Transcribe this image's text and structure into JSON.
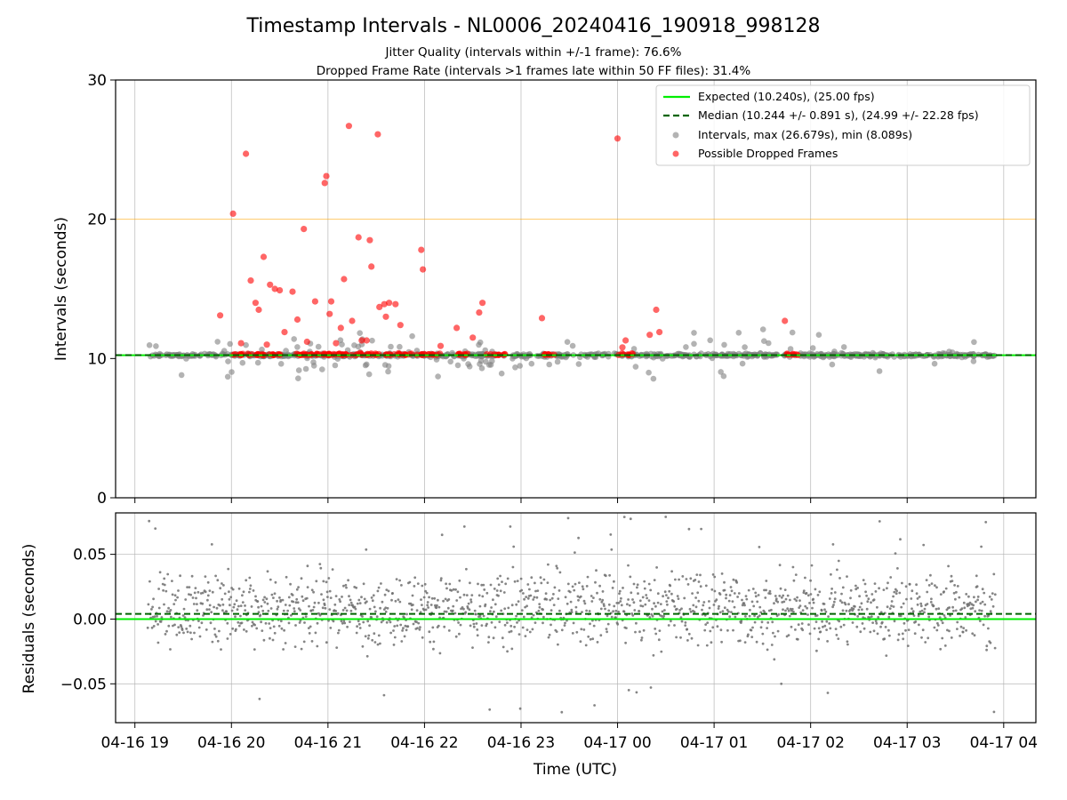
{
  "chart_data": [
    {
      "type": "scatter",
      "title": "Timestamp Intervals - NL0006_20240416_190918_998128",
      "subtitle_lines": [
        "Jitter Quality (intervals within +/-1 frame): 76.6%",
        "Dropped Frame Rate (intervals >1 frames late within 50 FF files): 31.4%"
      ],
      "ylabel": "Intervals (seconds)",
      "ylim": [
        0,
        30
      ],
      "yticks": [
        "0",
        "10",
        "20",
        "30"
      ],
      "grid": "x",
      "legend_placement": "upper right",
      "reference_lines": {
        "expected": 10.24,
        "median": 10.244,
        "threshold": 20
      },
      "colors": {
        "expected": "#00ee00",
        "median": "#006400",
        "intervals": "#808080",
        "dropped": "#ff0000",
        "threshold": "#ffa500"
      },
      "legend": [
        "Expected (10.240s), (25.00 fps)",
        "Median (10.244 +/- 0.891 s), (24.99 +/- 22.28 fps)",
        "Intervals, max (26.679s), min (8.089s)",
        "Possible Dropped Frames"
      ],
      "dropped_frames": {
        "x": [
          "2024-04-16 19:53",
          "2024-04-16 20:01",
          "2024-04-16 20:09",
          "2024-04-16 20:12",
          "2024-04-16 20:15",
          "2024-04-16 20:17",
          "2024-04-16 20:20",
          "2024-04-16 20:24",
          "2024-04-16 20:27",
          "2024-04-16 20:30",
          "2024-04-16 20:33",
          "2024-04-16 20:38",
          "2024-04-16 20:41",
          "2024-04-16 20:45",
          "2024-04-16 20:52",
          "2024-04-16 20:58",
          "2024-04-16 20:59",
          "2024-04-16 21:01",
          "2024-04-16 21:02",
          "2024-04-16 21:08",
          "2024-04-16 21:10",
          "2024-04-16 21:13",
          "2024-04-16 21:15",
          "2024-04-16 21:19",
          "2024-04-16 21:21",
          "2024-04-16 21:26",
          "2024-04-16 21:27",
          "2024-04-16 21:31",
          "2024-04-16 21:32",
          "2024-04-16 21:35",
          "2024-04-16 21:36",
          "2024-04-16 21:38",
          "2024-04-16 21:42",
          "2024-04-16 21:58",
          "2024-04-16 21:59",
          "2024-04-16 22:20",
          "2024-04-16 22:34",
          "2024-04-16 22:36",
          "2024-04-16 23:13",
          "2024-04-17 00:00",
          "2024-04-17 00:05",
          "2024-04-17 00:20",
          "2024-04-17 00:24",
          "2024-04-17 01:44",
          "2024-04-16 20:06",
          "2024-04-16 20:22",
          "2024-04-16 20:47",
          "2024-04-16 21:05",
          "2024-04-16 21:24",
          "2024-04-16 21:45",
          "2024-04-16 22:10",
          "2024-04-16 22:30",
          "2024-04-17 00:03",
          "2024-04-17 00:26"
        ],
        "y": [
          13.1,
          20.4,
          24.7,
          15.6,
          14.0,
          13.5,
          17.3,
          15.3,
          15.0,
          14.9,
          11.9,
          14.8,
          12.8,
          19.3,
          14.1,
          22.6,
          23.1,
          13.2,
          14.1,
          12.2,
          15.7,
          26.7,
          12.7,
          18.7,
          11.3,
          18.5,
          16.6,
          26.1,
          13.7,
          13.9,
          13.0,
          14.0,
          13.9,
          17.8,
          16.4,
          12.2,
          13.3,
          14.0,
          12.9,
          25.8,
          11.3,
          11.7,
          13.5,
          12.7,
          11.1,
          11.0,
          11.2,
          11.1,
          11.3,
          12.4,
          10.9,
          11.5,
          10.8,
          11.9
        ],
        "cluster_y": 10.25
      },
      "intervals": {
        "x_range": [
          "2024-04-16 19:09",
          "2024-04-17 03:55"
        ],
        "typical_y": 10.24,
        "max": 26.679,
        "min": 8.089
      }
    },
    {
      "type": "scatter",
      "xlabel": "Time (UTC)",
      "ylabel": "Residuals (seconds)",
      "ylim": [
        -0.08,
        0.082
      ],
      "yticks": [
        "0.05",
        "0.00",
        "−0.05"
      ],
      "xlim": [
        "2024-04-16 18:48",
        "2024-04-17 04:20"
      ],
      "xticks": [
        "04-16 19",
        "04-16 20",
        "04-16 21",
        "04-16 22",
        "04-16 23",
        "04-17 00",
        "04-17 01",
        "04-17 02",
        "04-17 03",
        "04-17 04"
      ],
      "grid": "both",
      "reference_lines": {
        "expected": 0.0,
        "median": 0.004
      },
      "residual_spread": {
        "center": 0.008,
        "typical_range": [
          -0.03,
          0.05
        ]
      }
    }
  ]
}
